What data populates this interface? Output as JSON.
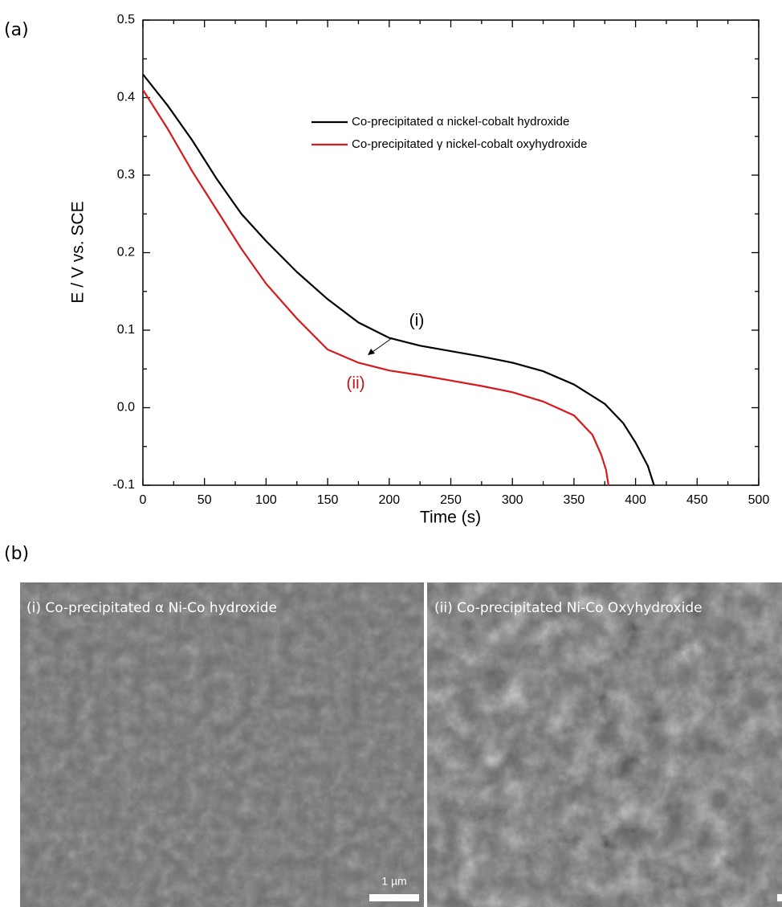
{
  "chart_data": {
    "type": "line",
    "xlabel": "Time (s)",
    "ylabel": "E / V vs. SCE",
    "xlim": [
      0,
      500
    ],
    "xticks": [
      0,
      50,
      100,
      150,
      200,
      250,
      300,
      350,
      400,
      450,
      500
    ],
    "ylim": [
      -0.1,
      0.5
    ],
    "yticks": [
      -0.1,
      {
        "value": 0,
        "label": "0.0"
      },
      0.1,
      0.2,
      0.3,
      0.4,
      0.5
    ],
    "series": [
      {
        "name": "Co-precipitated α nickel-cobalt hydroxide",
        "color": "#000000",
        "x": [
          0,
          20,
          40,
          60,
          80,
          100,
          125,
          150,
          175,
          200,
          225,
          250,
          275,
          300,
          325,
          350,
          375,
          390,
          400,
          410,
          415
        ],
        "values": [
          0.43,
          0.39,
          0.345,
          0.295,
          0.25,
          0.215,
          0.175,
          0.14,
          0.11,
          0.09,
          0.08,
          0.073,
          0.066,
          0.058,
          0.047,
          0.03,
          0.005,
          -0.02,
          -0.045,
          -0.075,
          -0.1
        ]
      },
      {
        "name": "Co-precipitated γ nickel-cobalt oxyhydroxide",
        "color": "#d7191c",
        "x": [
          0,
          20,
          40,
          60,
          80,
          100,
          125,
          150,
          175,
          200,
          225,
          250,
          275,
          300,
          325,
          350,
          365,
          372,
          376,
          378
        ],
        "values": [
          0.41,
          0.36,
          0.305,
          0.255,
          0.205,
          0.16,
          0.115,
          0.075,
          0.058,
          0.048,
          0.042,
          0.035,
          0.028,
          0.02,
          0.008,
          -0.01,
          -0.035,
          -0.06,
          -0.08,
          -0.1
        ]
      }
    ],
    "annotations": [
      {
        "text": "(i)",
        "color": "#000000"
      },
      {
        "text": "(ii)",
        "color": "#c0161b"
      }
    ]
  },
  "panel_labels": [
    "(a)",
    "(b)"
  ],
  "images": [
    {
      "caption": "(i) Co-precipitated α Ni-Co hydroxide",
      "scale_bar": "1 µm"
    },
    {
      "caption": "(ii) Co-precipitated Ni-Co Oxyhydroxide"
    }
  ]
}
